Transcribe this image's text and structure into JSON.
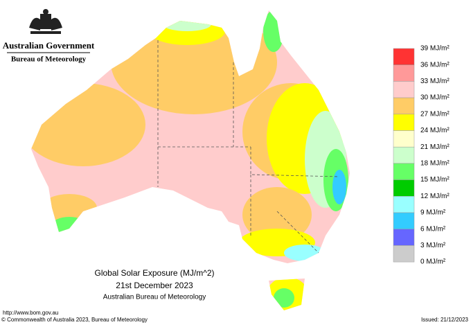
{
  "header": {
    "government": "Australian Government",
    "agency": "Bureau of Meteorology"
  },
  "map": {
    "title": "Global Solar Exposure (MJ/m^2)",
    "date": "21st December 2023",
    "source": "Australian Bureau of Meteorology"
  },
  "legend": {
    "labels": [
      "39 MJ/m²",
      "36 MJ/m²",
      "33 MJ/m²",
      "30 MJ/m²",
      "27 MJ/m²",
      "24 MJ/m²",
      "21 MJ/m²",
      "18 MJ/m²",
      "15 MJ/m²",
      "12 MJ/m²",
      "9 MJ/m²",
      "6 MJ/m²",
      "3 MJ/m²",
      "0 MJ/m²"
    ],
    "colors": [
      "#ff3333",
      "#ff9999",
      "#ffcccc",
      "#ffcc66",
      "#ffff00",
      "#ffffcc",
      "#ccffcc",
      "#66ff66",
      "#00cc00",
      "#99ffff",
      "#33ccff",
      "#6666ff",
      "#cccccc"
    ]
  },
  "footer": {
    "url": "http://www.bom.gov.au",
    "copyright": "© Commonwealth of Australia 2023, Bureau of Meteorology",
    "issued": "Issued: 21/12/2023"
  }
}
